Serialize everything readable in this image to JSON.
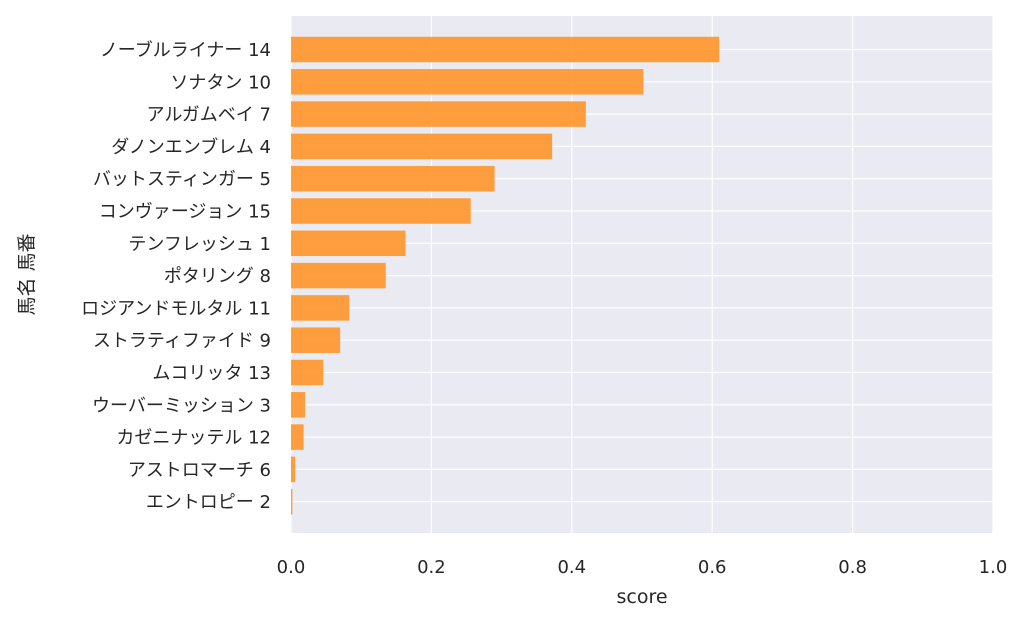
{
  "chart_data": {
    "type": "bar",
    "orientation": "horizontal",
    "categories": [
      "ノーブルライナー 14",
      "ソナタン 10",
      "アルガムベイ 7",
      "ダノンエンブレム 4",
      "バットスティンガー 5",
      "コンヴァージョン 15",
      "テンフレッシュ 1",
      "ポタリング 8",
      "ロジアンドモルタル 11",
      "ストラティファイド 9",
      "ムコリッタ 13",
      "ウーバーミッション 3",
      "カゼニナッテル 12",
      "アストロマーチ 6",
      "エントロピー 2"
    ],
    "values": [
      0.61,
      0.502,
      0.42,
      0.372,
      0.29,
      0.256,
      0.163,
      0.135,
      0.083,
      0.07,
      0.046,
      0.02,
      0.018,
      0.006,
      0.002
    ],
    "xlabel": "score",
    "ylabel": "馬名 馬番",
    "xlim": [
      0.0,
      1.0
    ],
    "xticks": [
      "0.0",
      "0.2",
      "0.4",
      "0.6",
      "0.8",
      "1.0"
    ],
    "grid": true,
    "colors": {
      "bar": "#ff9933",
      "plot_background": "#eaeaf2",
      "grid": "#ffffff"
    }
  }
}
